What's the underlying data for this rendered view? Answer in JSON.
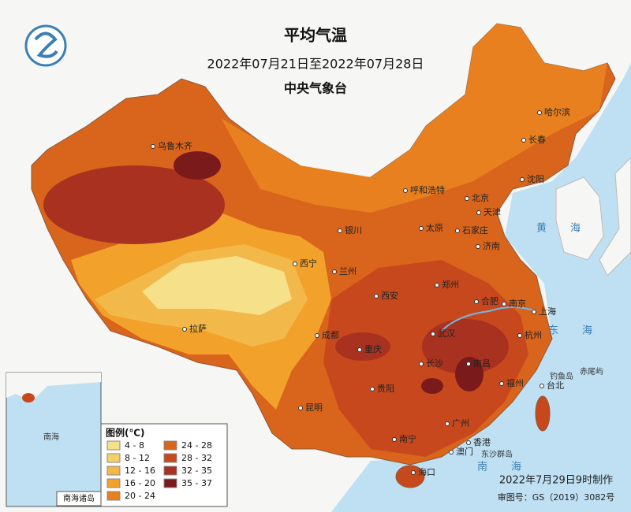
{
  "header": {
    "title": "平均气温",
    "period": "2022年07月21日至2022年07月28日",
    "agency": "中央气象台"
  },
  "legend": {
    "title": "图例(℃)",
    "items": [
      {
        "label": "4 - 8",
        "color": "#f7e08a"
      },
      {
        "label": "8 - 12",
        "color": "#f5cf6a"
      },
      {
        "label": "12 - 16",
        "color": "#f3b84a"
      },
      {
        "label": "16 - 20",
        "color": "#f2a22b"
      },
      {
        "label": "20 - 24",
        "color": "#e8801f"
      },
      {
        "label": "24 - 28",
        "color": "#d9641c"
      },
      {
        "label": "28 - 32",
        "color": "#c8481e"
      },
      {
        "label": "32 - 35",
        "color": "#a8321f"
      },
      {
        "label": "35 - 37",
        "color": "#7a1a1a"
      }
    ]
  },
  "cities": [
    "乌鲁木齐",
    "哈尔滨",
    "长春",
    "沈阳",
    "呼和浩特",
    "北京",
    "天津",
    "太原",
    "石家庄",
    "济南",
    "银川",
    "西宁",
    "兰州",
    "西安",
    "郑州",
    "合肥",
    "南京",
    "上海",
    "杭州",
    "武汉",
    "成都",
    "重庆",
    "长沙",
    "南昌",
    "福州",
    "台北",
    "拉萨",
    "贵阳",
    "昆明",
    "南宁",
    "广州",
    "香港",
    "澳门",
    "海口"
  ],
  "seas": [
    "黄海",
    "东海",
    "南海"
  ],
  "islands": [
    "钓鱼岛",
    "赤尾屿",
    "东沙群岛"
  ],
  "inset": {
    "label": "南海诸岛",
    "sea": "南海"
  },
  "footer": {
    "made": "2022年7月29日9时制作",
    "approval": "审图号：GS（2019）3082号"
  }
}
